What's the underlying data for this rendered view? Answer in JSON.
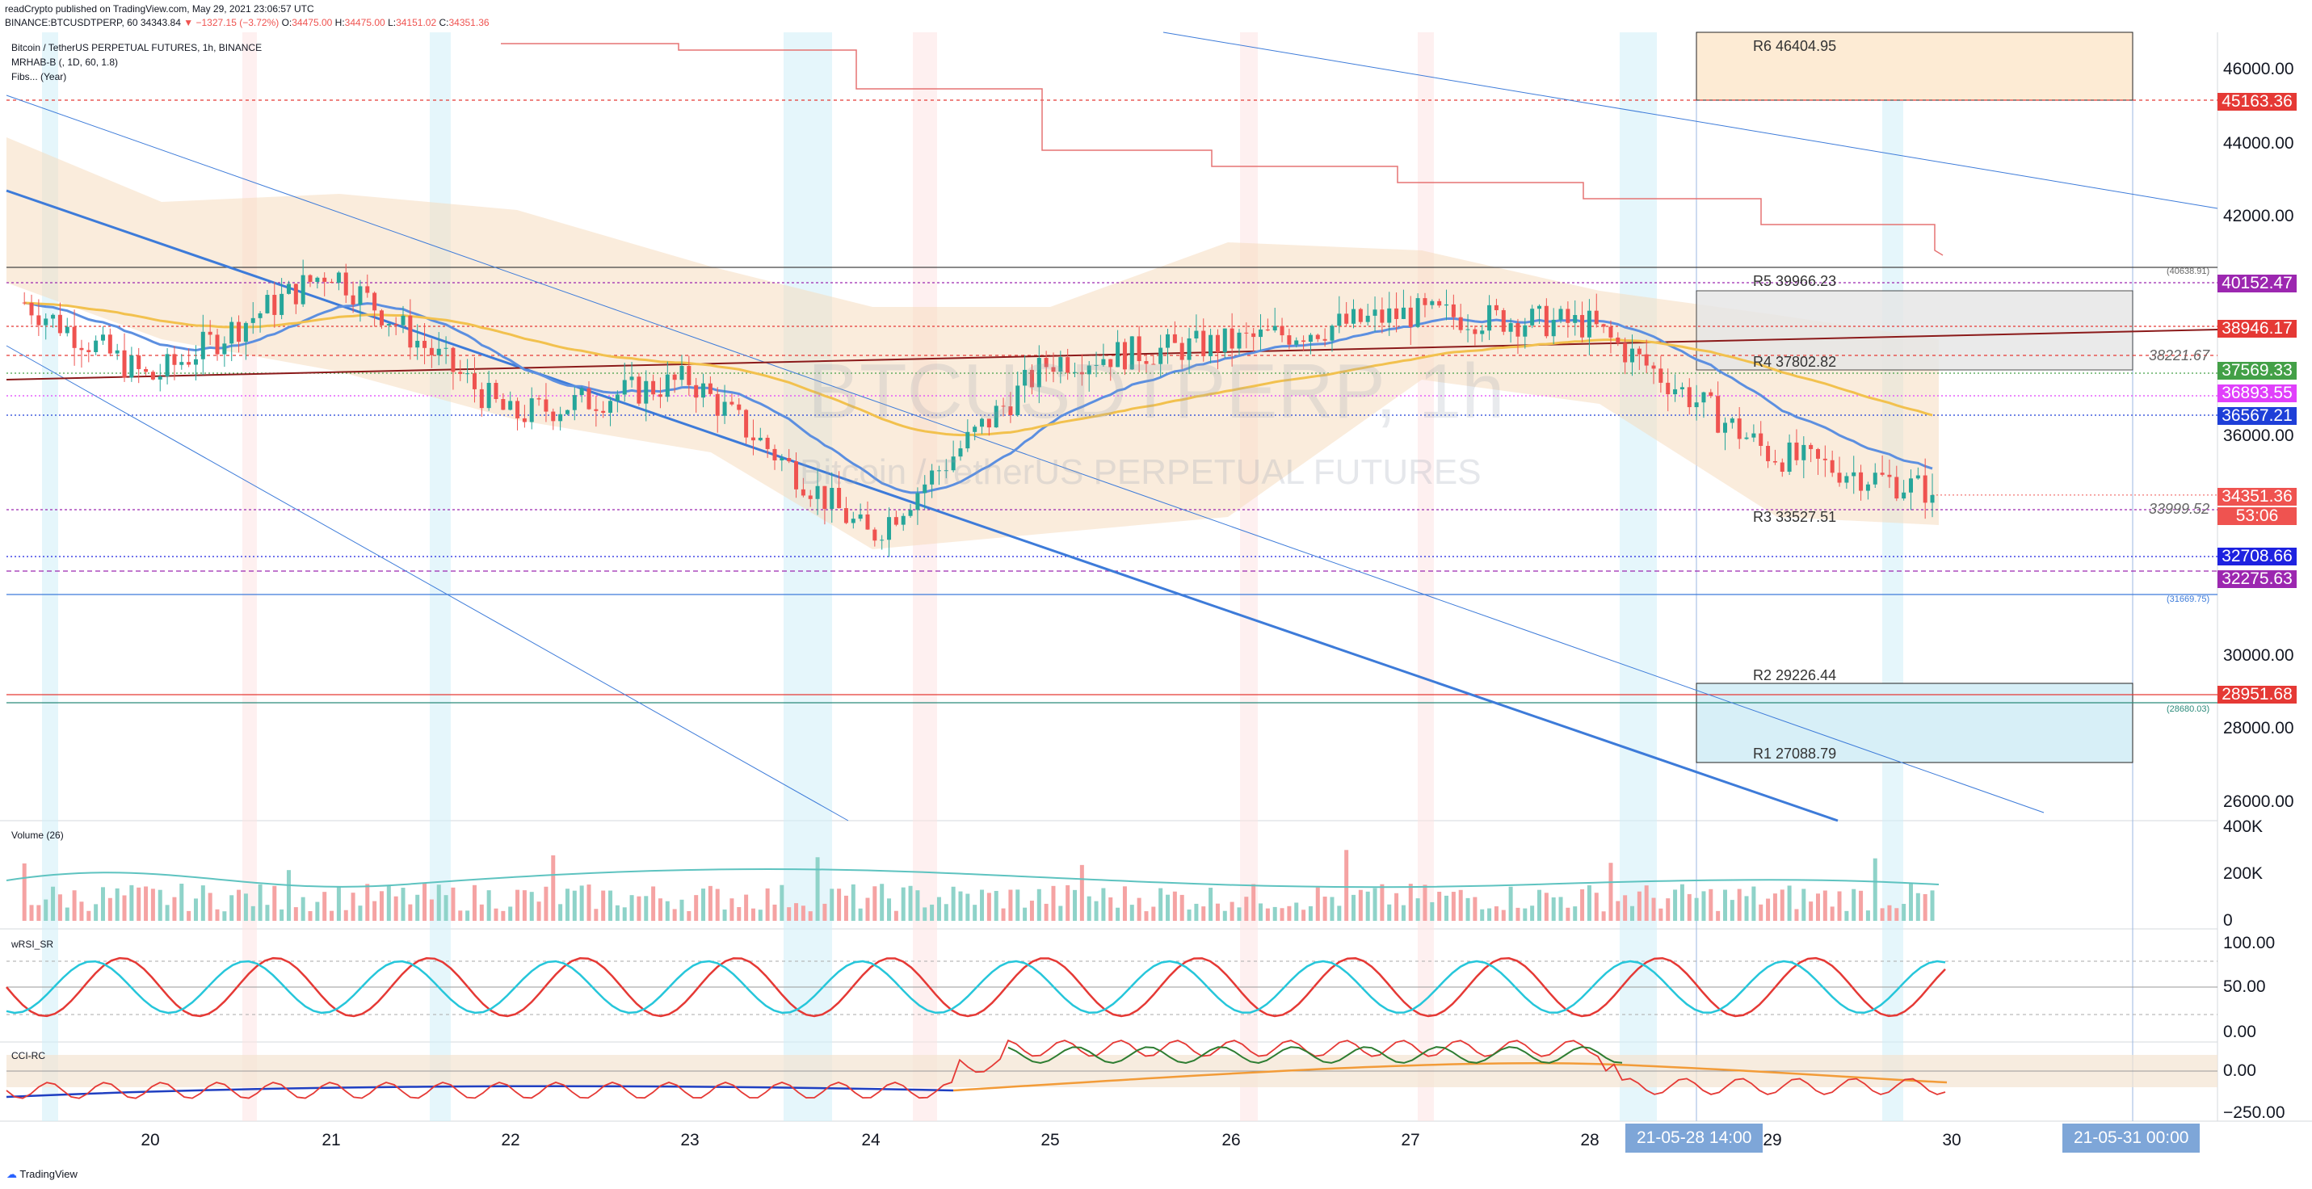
{
  "header": {
    "line1": "readCrypto published on TradingView.com, May 29, 2021 23:06:57 UTC",
    "symbol": "BINANCE:BTCUSDTPERP, 60",
    "last": "34343.84",
    "change": "−1327.15 (−3.72%)",
    "o_label": "O:",
    "o": "34475.00",
    "h_label": "H:",
    "h": "34475.00",
    "l_label": "L:",
    "l": "34151.02",
    "c_label": "C:",
    "c": "34351.36"
  },
  "legend": {
    "title": "Bitcoin / TetherUS PERPETUAL FUTURES, 1h, BINANCE",
    "ind1": "MRHAB-B (, 1D, 60, 1.8)",
    "ind2": "Fibs... (Year)"
  },
  "watermark": {
    "symbol": "BTCUSDTPERP, 1h",
    "name": "Bitcoin / TetherUS PERPETUAL FUTURES"
  },
  "panes": {
    "volume": "Volume (26)",
    "wrsi": "wRSI_SR",
    "cci": "CCI-RC"
  },
  "pivots": {
    "r6": "R6 46404.95",
    "r5": "R5 39966.23",
    "r4": "R4 37802.82",
    "r3": "R3 33527.51",
    "r2": "R2 29226.44",
    "r1": "R1 27088.79"
  },
  "small_labels": {
    "a": "(40638.91)",
    "b": "38221.67",
    "c": "33999.52",
    "d": "(31669.75)",
    "e": "(28680.03)"
  },
  "price_axis": [
    "46000.00",
    "44000.00",
    "42000.00",
    "36000.00",
    "30000.00",
    "28000.00",
    "26000.00"
  ],
  "price_labels": [
    {
      "text": "45163.36",
      "color": "#e53935",
      "sub": ""
    },
    {
      "text": "40152.47",
      "color": "#9c27b0",
      "sub": ""
    },
    {
      "text": "38946.17",
      "color": "#e53935",
      "sub": ""
    },
    {
      "text": "37569.33",
      "color": "#43a047",
      "sub": ""
    },
    {
      "text": "36893.55",
      "color": "#e040fb",
      "sub": ""
    },
    {
      "text": "36567.21",
      "color": "#1e3fd8",
      "sub": ""
    },
    {
      "text": "34351.36",
      "color": "#ef5350",
      "sub": "53:06"
    },
    {
      "text": "32708.66",
      "color": "#1e22e0",
      "sub": ""
    },
    {
      "text": "32275.63",
      "color": "#9c27b0",
      "sub": ""
    },
    {
      "text": "28951.68",
      "color": "#e53935",
      "sub": ""
    }
  ],
  "volume_axis": [
    "400K",
    "200K",
    "0"
  ],
  "wrsi_axis": [
    "100.00",
    "50.00",
    "0.00"
  ],
  "cci_axis": [
    "0.00",
    "−250.00"
  ],
  "time_axis": [
    "20",
    "21",
    "22",
    "23",
    "24",
    "25",
    "26",
    "27",
    "28",
    "29",
    "30"
  ],
  "time_badges": [
    "21-05-28   14:00",
    "21-05-31   00:00"
  ],
  "footer": "TradingView",
  "colors": {
    "up": "#26a69a",
    "down": "#ef5350",
    "cloud": "#f6dcc0",
    "red_trail": "#e53935",
    "blue_trend": "#3d7bd9"
  },
  "chart_data": {
    "type": "candlestick",
    "timeframe": "1h",
    "x_range": [
      "2021-05-19",
      "2021-05-30"
    ],
    "ylim": [
      25000,
      47000
    ],
    "last_close": 34351.36,
    "ohlc_last": {
      "o": 34475.0,
      "h": 34475.0,
      "l": 34151.02,
      "c": 34351.36
    },
    "daily_path": [
      {
        "day": "19",
        "price": 40500
      },
      {
        "day": "20",
        "price": 37500
      },
      {
        "day": "21",
        "price": 40500
      },
      {
        "day": "22",
        "price": 36500
      },
      {
        "day": "23",
        "price": 37500
      },
      {
        "day": "24",
        "price": 33200
      },
      {
        "day": "25",
        "price": 38000
      },
      {
        "day": "26",
        "price": 38500
      },
      {
        "day": "27",
        "price": 39300
      },
      {
        "day": "28",
        "price": 39000
      },
      {
        "day": "29",
        "price": 35500
      },
      {
        "day": "30",
        "price": 34351
      }
    ],
    "pivots": [
      {
        "name": "R6",
        "value": 46404.95
      },
      {
        "name": "R5",
        "value": 39966.23
      },
      {
        "name": "R4",
        "value": 37802.82
      },
      {
        "name": "R3",
        "value": 33527.51
      },
      {
        "name": "R2",
        "value": 29226.44
      },
      {
        "name": "R1",
        "value": 27088.79
      }
    ],
    "volume_range": [
      0,
      400000
    ],
    "wrsi_range": [
      0,
      100
    ],
    "cci_range": [
      -300,
      100
    ]
  }
}
